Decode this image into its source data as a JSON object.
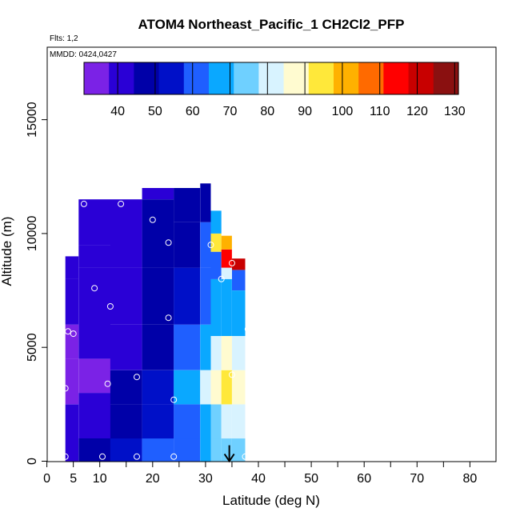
{
  "chart_data": {
    "type": "heatmap",
    "title": "ATOM4 Northeast_Pacific_1 CH2Cl2_PFP",
    "flights_label": "Flts: 1,2",
    "mmdd_label": "MMDD: 0424,0427",
    "xlabel": "Latitude (deg N)",
    "ylabel": "Altitude (m)",
    "xlim": [
      0,
      85
    ],
    "ylim": [
      0,
      17500
    ],
    "x_ticks_major": [
      0,
      10,
      20,
      30,
      40,
      50,
      60,
      70,
      80
    ],
    "x_ticks_minor": [
      5
    ],
    "x_ticks_unlabeled": [
      15,
      25,
      35,
      45,
      55,
      65,
      75
    ],
    "y_ticks": [
      0,
      5000,
      10000,
      15000
    ],
    "colorbar": {
      "min": 31,
      "max": 131,
      "ticks": [
        40,
        50,
        60,
        70,
        80,
        90,
        100,
        110,
        120,
        130
      ],
      "colors": [
        "#7b22e6",
        "#2a00d6",
        "#0000a8",
        "#0010c8",
        "#1f5fff",
        "#0aa8ff",
        "#6fd0ff",
        "#d8f3ff",
        "#fffbd0",
        "#ffe83a",
        "#ffb100",
        "#ff6a00",
        "#ff0000",
        "#c80000",
        "#8a1010"
      ]
    },
    "series": [
      {
        "name": "curtain",
        "columns": [
          {
            "x0": 3.5,
            "x1": 6,
            "rows": [
              [
                0,
                1000,
                40
              ],
              [
                1000,
                2500,
                38
              ],
              [
                2500,
                4500,
                34
              ],
              [
                4500,
                6000,
                37
              ],
              [
                6000,
                8000,
                40
              ],
              [
                8000,
                9000,
                42
              ]
            ]
          },
          {
            "x0": 6,
            "x1": 12,
            "rows": [
              [
                0,
                1000,
                45
              ],
              [
                1000,
                3000,
                42
              ],
              [
                3000,
                4500,
                36
              ],
              [
                4500,
                6500,
                40
              ],
              [
                6500,
                8500,
                38
              ],
              [
                8500,
                9500,
                43
              ],
              [
                9500,
                11500,
                44
              ]
            ]
          },
          {
            "x0": 12,
            "x1": 18,
            "rows": [
              [
                0,
                1000,
                52
              ],
              [
                1000,
                2500,
                47
              ],
              [
                2500,
                4000,
                46
              ],
              [
                4000,
                6000,
                44
              ],
              [
                6000,
                8500,
                41
              ],
              [
                8500,
                11500,
                44
              ]
            ]
          },
          {
            "x0": 18,
            "x1": 24,
            "rows": [
              [
                0,
                1000,
                58
              ],
              [
                1000,
                2500,
                52
              ],
              [
                2500,
                4000,
                55
              ],
              [
                4000,
                6000,
                50
              ],
              [
                6000,
                8500,
                46
              ],
              [
                8500,
                11500,
                45
              ],
              [
                11500,
                12000,
                43
              ]
            ]
          },
          {
            "x0": 24,
            "x1": 29,
            "rows": [
              [
                0,
                1000,
                62
              ],
              [
                1000,
                2500,
                60
              ],
              [
                2500,
                4000,
                66
              ],
              [
                4000,
                6000,
                58
              ],
              [
                6000,
                8500,
                52
              ],
              [
                8500,
                10500,
                48
              ],
              [
                10500,
                12000,
                45
              ]
            ]
          },
          {
            "x0": 29,
            "x1": 31,
            "rows": [
              [
                0,
                1000,
                68
              ],
              [
                1000,
                2500,
                70
              ],
              [
                2500,
                4000,
                80
              ],
              [
                4000,
                6000,
                66
              ],
              [
                6000,
                8500,
                60
              ],
              [
                8500,
                10500,
                58
              ],
              [
                10500,
                12200,
                47
              ]
            ]
          },
          {
            "x0": 31,
            "x1": 33,
            "rows": [
              [
                0,
                1000,
                72
              ],
              [
                1000,
                2500,
                74
              ],
              [
                2500,
                4000,
                88
              ],
              [
                4000,
                5500,
                82
              ],
              [
                5500,
                8000,
                66
              ],
              [
                8000,
                9200,
                62
              ],
              [
                9200,
                10000,
                95
              ],
              [
                10000,
                11000,
                70
              ]
            ]
          },
          {
            "x0": 33,
            "x1": 35,
            "rows": [
              [
                0,
                1000,
                74
              ],
              [
                1000,
                2500,
                78
              ],
              [
                2500,
                4000,
                92
              ],
              [
                4000,
                5500,
                86
              ],
              [
                5500,
                8000,
                70
              ],
              [
                8000,
                8500,
                80
              ],
              [
                8500,
                9300,
                112
              ],
              [
                9300,
                9900,
                100
              ]
            ]
          },
          {
            "x0": 35,
            "x1": 37.5,
            "rows": [
              [
                0,
                1000,
                76
              ],
              [
                1000,
                2500,
                80
              ],
              [
                2500,
                4000,
                86
              ],
              [
                4000,
                5500,
                78
              ],
              [
                5500,
                7500,
                66
              ],
              [
                7500,
                8400,
                62
              ],
              [
                8400,
                8900,
                124
              ]
            ]
          }
        ]
      },
      {
        "name": "samples",
        "x": [
          3.5,
          10.5,
          17,
          24,
          37.5,
          3.5,
          11.5,
          24,
          17,
          35,
          4,
          5,
          38,
          23,
          12,
          9,
          33,
          35,
          31,
          23,
          20,
          7,
          14,
          5
        ],
        "y": [
          200,
          200,
          200,
          200,
          200,
          3200,
          3400,
          2700,
          3700,
          3800,
          5700,
          5600,
          5800,
          6300,
          6800,
          7600,
          8000,
          8700,
          9500,
          9600,
          10600,
          11300,
          11300,
          9800
        ]
      }
    ],
    "annotations": [
      {
        "type": "arrow",
        "x": 34.5,
        "y_from": 700,
        "y_to": 0
      }
    ]
  }
}
